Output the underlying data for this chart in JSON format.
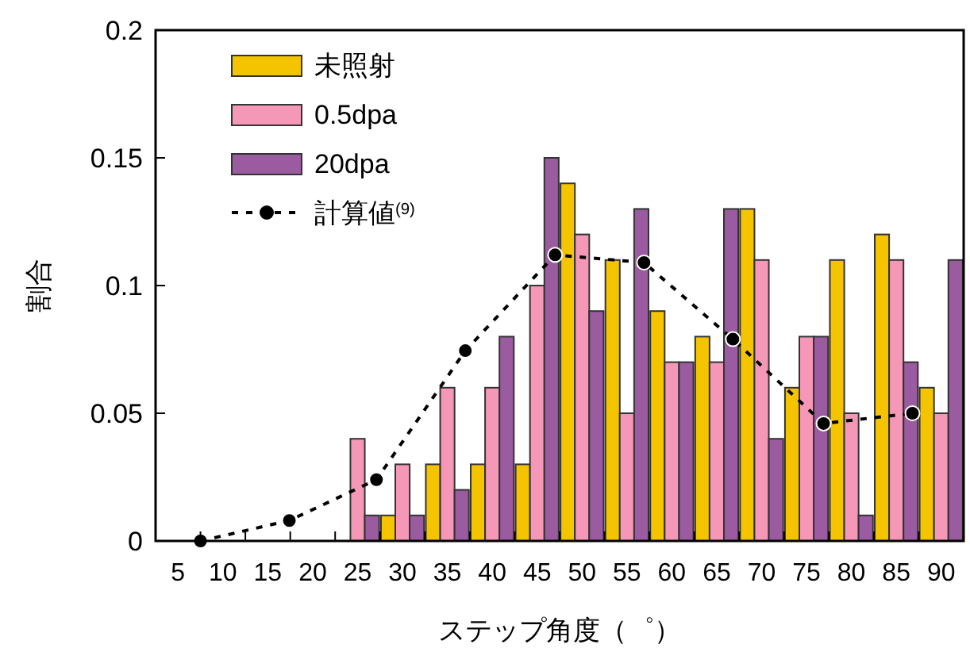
{
  "chart_data": {
    "type": "bar",
    "xlabel": "ステップ角度（゜）",
    "ylabel": "割合",
    "x": [
      25,
      30,
      35,
      40,
      45,
      50,
      55,
      60,
      65,
      70,
      75,
      80,
      85,
      90
    ],
    "series": [
      {
        "name": "未照射",
        "color": "#f5c400",
        "values": [
          0,
          0.01,
          0.03,
          0.03,
          0.03,
          0.14,
          0.11,
          0.09,
          0.08,
          0.13,
          0.06,
          0.11,
          0.12,
          0.06
        ]
      },
      {
        "name": "0.5dpa",
        "color": "#f598b8",
        "values": [
          0.04,
          0.03,
          0.06,
          0.06,
          0.1,
          0.12,
          0.05,
          0.07,
          0.07,
          0.11,
          0.08,
          0.05,
          0.11,
          0.05
        ]
      },
      {
        "name": "20dpa",
        "color": "#9b5ba0",
        "values": [
          0.01,
          0.01,
          0.02,
          0.08,
          0.15,
          0.09,
          0.13,
          0.07,
          0.13,
          0.04,
          0.08,
          0.01,
          0.07,
          0.11
        ]
      },
      {
        "name": "計算値$^{(9)}$",
        "type": "line",
        "color": "#000000",
        "marker": "circle",
        "line_style": "dashed",
        "x": [
          7.5,
          17.4,
          27.1,
          37,
          47,
          56.9,
          66.8,
          76.9,
          86.8
        ],
        "values": [
          0,
          0.008,
          0.024,
          0.0745,
          0.112,
          0.109,
          0.079,
          0.046,
          0.05
        ]
      }
    ],
    "xlim": [
      2.5,
      92.5
    ],
    "xticks": [
      5,
      {
        "value": 7.5,
        "label": null
      },
      10,
      {
        "value": 12.5,
        "label": null
      },
      15,
      {
        "value": 17.5,
        "label": null
      },
      20,
      {
        "value": 22.5,
        "label": null
      },
      25,
      {
        "value": 27.5,
        "label": null
      },
      30,
      {
        "value": 32.5,
        "label": null
      },
      35,
      {
        "value": 37.5,
        "label": null
      },
      40,
      {
        "value": 42.5,
        "label": null
      },
      45,
      {
        "value": 47.5,
        "label": null
      },
      50,
      {
        "value": 52.5,
        "label": null
      },
      55,
      {
        "value": 57.5,
        "label": null
      },
      60,
      {
        "value": 62.5,
        "label": null
      },
      65,
      {
        "value": 67.5,
        "label": null
      },
      70,
      {
        "value": 72.5,
        "label": null
      },
      75,
      {
        "value": 77.5,
        "label": null
      },
      80,
      {
        "value": 82.5,
        "label": null
      },
      85,
      {
        "value": 87.5,
        "label": null
      },
      90
    ],
    "ylim": [
      0,
      0.2
    ],
    "yticks": [
      0,
      0.05,
      0.1,
      0.15,
      0.2
    ],
    "grid": false,
    "legend": "top left"
  }
}
